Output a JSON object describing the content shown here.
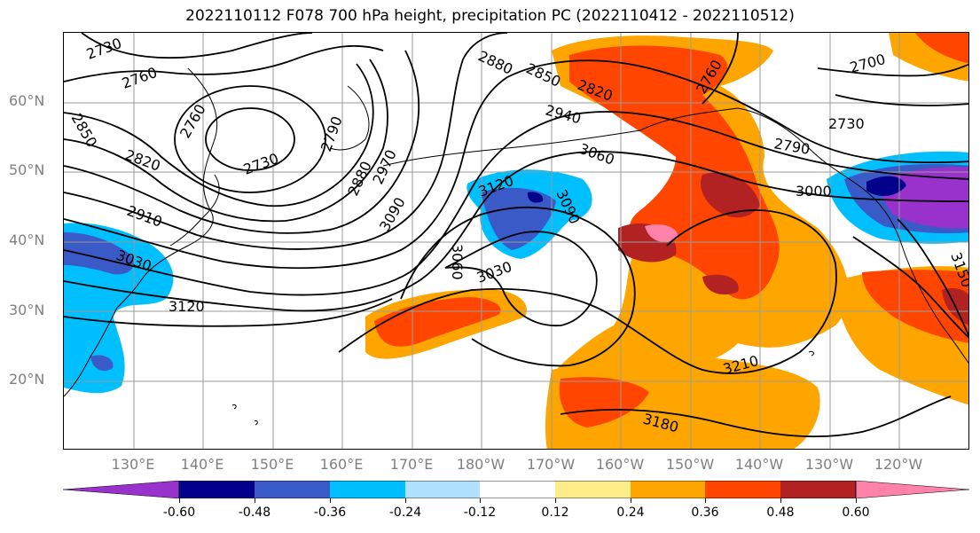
{
  "title": "2022110112 F078 700 hPa height, precipitation PC (2022110412 - 2022110512)",
  "lat_labels": [
    "60°N",
    "50°N",
    "40°N",
    "30°N",
    "20°N"
  ],
  "lon_labels": [
    "130°E",
    "140°E",
    "150°E",
    "160°E",
    "170°E",
    "180°W",
    "170°W",
    "160°W",
    "150°W",
    "140°W",
    "130°W",
    "120°W"
  ],
  "contour_labels": [
    "2730",
    "2760",
    "2850",
    "2820",
    "2730",
    "2760",
    "2790",
    "2880",
    "2970",
    "2910",
    "3030",
    "3120",
    "2880",
    "2850",
    "2820",
    "2940",
    "3060",
    "3120",
    "3090",
    "3090",
    "3060",
    "3030",
    "2760",
    "2700",
    "2730",
    "2790",
    "3000",
    "3150",
    "3210",
    "3180"
  ],
  "colorbar": {
    "ticks": [
      "-0.60",
      "-0.48",
      "-0.36",
      "-0.24",
      "-0.12",
      "0.12",
      "0.24",
      "0.36",
      "0.48",
      "0.60"
    ],
    "colors": [
      "#9932CC",
      "#00008B",
      "#3A5BC7",
      "#00BFFF",
      "#B0E2FF",
      "#FFFFFF",
      "#FFEC8B",
      "#FFA500",
      "#FF4500",
      "#B22222",
      "#FF82AB"
    ]
  },
  "layers": {
    "field": "precipitation PC",
    "contour_field": "700 hPa height"
  }
}
